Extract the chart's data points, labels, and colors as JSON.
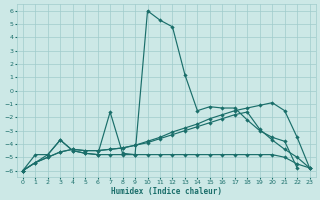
{
  "xlabel": "Humidex (Indice chaleur)",
  "bg_color": "#cce8e6",
  "grid_color": "#a0cccc",
  "line_color": "#1a6e6a",
  "xlim": [
    -0.5,
    23.5
  ],
  "ylim": [
    -6.5,
    6.5
  ],
  "xticks": [
    0,
    1,
    2,
    3,
    4,
    5,
    6,
    7,
    8,
    9,
    10,
    11,
    12,
    13,
    14,
    15,
    16,
    17,
    18,
    19,
    20,
    21,
    22,
    23
  ],
  "yticks": [
    -6,
    -5,
    -4,
    -3,
    -2,
    -1,
    0,
    1,
    2,
    3,
    4,
    5,
    6
  ],
  "line1_x": [
    0,
    1,
    2,
    3,
    4,
    5,
    6,
    7,
    8,
    9,
    10,
    11,
    12,
    13,
    14,
    15,
    16,
    17,
    18,
    19,
    20,
    21,
    22
  ],
  "line1_y": [
    -6,
    -4.8,
    -4.8,
    -3.7,
    -4.5,
    -4.7,
    -4.8,
    -4.8,
    -4.8,
    -4.8,
    6.0,
    5.3,
    4.8,
    1.2,
    -1.5,
    -1.2,
    -1.3,
    -1.3,
    -2.2,
    -3.0,
    -3.5,
    -3.8,
    -5.8
  ],
  "line2_x": [
    0,
    2,
    3,
    4,
    5,
    6,
    7,
    8,
    9,
    10,
    11,
    12,
    13,
    14,
    15,
    16,
    17,
    18,
    19,
    20,
    21,
    22,
    23
  ],
  "line2_y": [
    -6,
    -4.8,
    -3.7,
    -4.5,
    -4.7,
    -4.8,
    -1.6,
    -4.7,
    -4.8,
    -4.8,
    -4.8,
    -4.8,
    -4.8,
    -4.8,
    -4.8,
    -4.8,
    -4.8,
    -4.8,
    -4.8,
    -4.8,
    -5.0,
    -5.5,
    -5.8
  ],
  "line3_x": [
    0,
    1,
    2,
    3,
    4,
    5,
    6,
    7,
    8,
    9,
    10,
    11,
    12,
    13,
    14,
    15,
    16,
    17,
    18,
    19,
    20,
    21,
    22,
    23
  ],
  "line3_y": [
    -6,
    -5.4,
    -5.0,
    -4.6,
    -4.4,
    -4.5,
    -4.5,
    -4.4,
    -4.3,
    -4.1,
    -3.9,
    -3.6,
    -3.3,
    -3.0,
    -2.7,
    -2.4,
    -2.1,
    -1.8,
    -1.6,
    -2.9,
    -3.7,
    -4.4,
    -5.0,
    -5.8
  ],
  "line4_x": [
    0,
    1,
    2,
    3,
    4,
    5,
    6,
    7,
    8,
    9,
    10,
    11,
    12,
    13,
    14,
    15,
    16,
    17,
    18,
    19,
    20,
    21,
    22,
    23
  ],
  "line4_y": [
    -6,
    -5.4,
    -5.0,
    -4.6,
    -4.4,
    -4.5,
    -4.5,
    -4.4,
    -4.3,
    -4.1,
    -3.8,
    -3.5,
    -3.1,
    -2.8,
    -2.5,
    -2.1,
    -1.8,
    -1.5,
    -1.3,
    -1.1,
    -0.9,
    -1.5,
    -3.5,
    -5.8
  ]
}
